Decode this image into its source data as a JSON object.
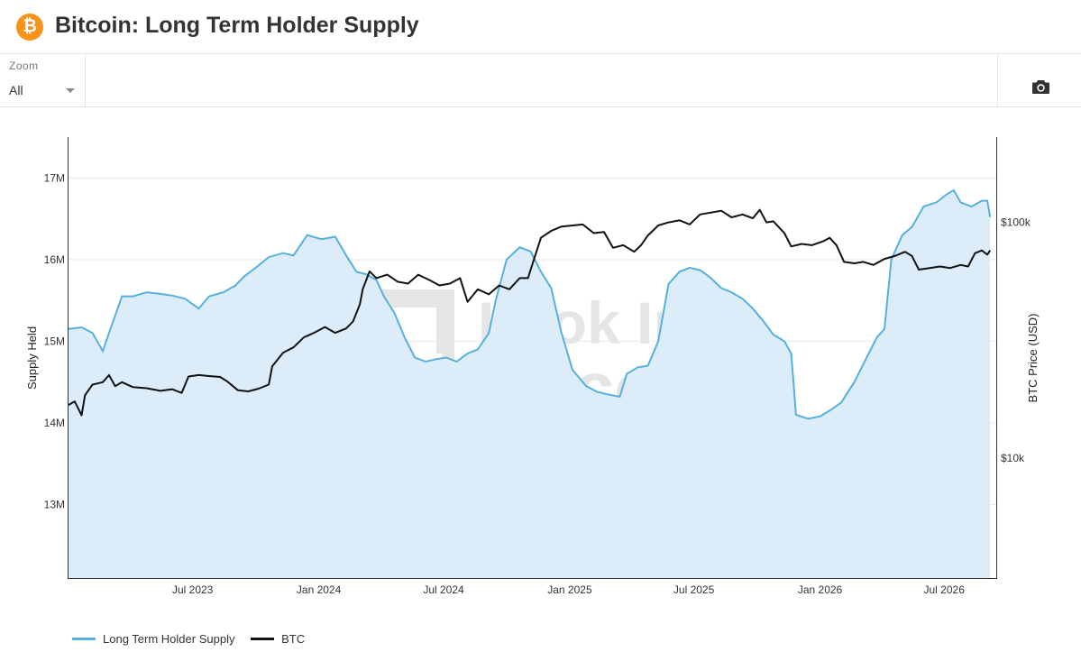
{
  "header": {
    "title": "Bitcoin: Long Term Holder Supply",
    "logo_glyph": "₿",
    "logo_color": "#f7931a"
  },
  "toolbar": {
    "zoom_label": "Zoom",
    "zoom_value": "All",
    "camera_icon": "camera-icon"
  },
  "watermark": {
    "line1": "Look Into",
    "line2": "Bitcoin"
  },
  "chart_data": {
    "type": "line",
    "title": "Bitcoin: Long Term Holder Supply",
    "ylabel": "Supply Held",
    "y2label": "BTC Price (USD)",
    "y_ticks": [
      "13M",
      "14M",
      "15M",
      "16M",
      "17M"
    ],
    "y2_ticks": [
      "$10k",
      "$100k"
    ],
    "x_ticks": [
      "Jul 2023",
      "Jan 2024",
      "Jul 2024",
      "Jan 2025",
      "Jul 2025",
      "Jan 2026",
      "Jul 2026"
    ],
    "x_tick_dates": [
      "2023-07-01",
      "2024-01-01",
      "2024-07-01",
      "2025-01-01",
      "2025-07-01",
      "2026-01-01",
      "2026-07-01"
    ],
    "x_range": [
      "2023-01-01",
      "2026-09-15"
    ],
    "y_range": [
      12100000,
      17500000
    ],
    "y2_log_range": [
      3100,
      230000
    ],
    "legend_position": "bottom-left",
    "series": [
      {
        "name": "Long Term Holder Supply",
        "color": "#56b0dd",
        "fill": "#dcedf9",
        "axis": "left",
        "points": [
          [
            "2023-01-01",
            15150000
          ],
          [
            "2023-01-20",
            15170000
          ],
          [
            "2023-02-05",
            15100000
          ],
          [
            "2023-02-20",
            14880000
          ],
          [
            "2023-03-01",
            15100000
          ],
          [
            "2023-03-20",
            15550000
          ],
          [
            "2023-04-05",
            15550000
          ],
          [
            "2023-04-25",
            15600000
          ],
          [
            "2023-05-15",
            15580000
          ],
          [
            "2023-06-01",
            15560000
          ],
          [
            "2023-06-20",
            15520000
          ],
          [
            "2023-07-10",
            15400000
          ],
          [
            "2023-07-25",
            15550000
          ],
          [
            "2023-08-15",
            15600000
          ],
          [
            "2023-09-01",
            15680000
          ],
          [
            "2023-09-15",
            15800000
          ],
          [
            "2023-10-01",
            15900000
          ],
          [
            "2023-10-20",
            16030000
          ],
          [
            "2023-11-10",
            16080000
          ],
          [
            "2023-11-25",
            16050000
          ],
          [
            "2023-12-15",
            16300000
          ],
          [
            "2024-01-05",
            16250000
          ],
          [
            "2024-01-25",
            16280000
          ],
          [
            "2024-02-10",
            16050000
          ],
          [
            "2024-02-25",
            15850000
          ],
          [
            "2024-03-10",
            15820000
          ],
          [
            "2024-03-25",
            15750000
          ],
          [
            "2024-04-05",
            15550000
          ],
          [
            "2024-04-20",
            15350000
          ],
          [
            "2024-05-05",
            15050000
          ],
          [
            "2024-05-20",
            14800000
          ],
          [
            "2024-06-05",
            14750000
          ],
          [
            "2024-06-20",
            14780000
          ],
          [
            "2024-07-05",
            14800000
          ],
          [
            "2024-07-20",
            14750000
          ],
          [
            "2024-08-05",
            14850000
          ],
          [
            "2024-08-20",
            14900000
          ],
          [
            "2024-09-05",
            15100000
          ],
          [
            "2024-09-15",
            15500000
          ],
          [
            "2024-10-01",
            16000000
          ],
          [
            "2024-10-20",
            16150000
          ],
          [
            "2024-11-05",
            16100000
          ],
          [
            "2024-11-20",
            15850000
          ],
          [
            "2024-12-05",
            15650000
          ],
          [
            "2024-12-20",
            15100000
          ],
          [
            "2025-01-05",
            14650000
          ],
          [
            "2025-01-25",
            14450000
          ],
          [
            "2025-02-10",
            14380000
          ],
          [
            "2025-02-25",
            14350000
          ],
          [
            "2025-03-15",
            14320000
          ],
          [
            "2025-03-25",
            14600000
          ],
          [
            "2025-04-10",
            14680000
          ],
          [
            "2025-04-25",
            14700000
          ],
          [
            "2025-05-10",
            15000000
          ],
          [
            "2025-05-25",
            15700000
          ],
          [
            "2025-06-10",
            15850000
          ],
          [
            "2025-06-25",
            15900000
          ],
          [
            "2025-07-10",
            15870000
          ],
          [
            "2025-07-25",
            15780000
          ],
          [
            "2025-08-10",
            15650000
          ],
          [
            "2025-08-25",
            15600000
          ],
          [
            "2025-09-10",
            15520000
          ],
          [
            "2025-09-25",
            15400000
          ],
          [
            "2025-10-10",
            15250000
          ],
          [
            "2025-10-25",
            15080000
          ],
          [
            "2025-11-10",
            15000000
          ],
          [
            "2025-11-20",
            14850000
          ],
          [
            "2025-11-27",
            14100000
          ],
          [
            "2025-12-15",
            14050000
          ],
          [
            "2026-01-01",
            14080000
          ],
          [
            "2026-01-15",
            14150000
          ],
          [
            "2026-02-01",
            14250000
          ],
          [
            "2026-02-20",
            14500000
          ],
          [
            "2026-03-10",
            14800000
          ],
          [
            "2026-03-25",
            15050000
          ],
          [
            "2026-04-05",
            15150000
          ],
          [
            "2026-04-15",
            16000000
          ],
          [
            "2026-05-01",
            16300000
          ],
          [
            "2026-05-15",
            16400000
          ],
          [
            "2026-06-01",
            16650000
          ],
          [
            "2026-06-20",
            16700000
          ],
          [
            "2026-07-05",
            16800000
          ],
          [
            "2026-07-15",
            16850000
          ],
          [
            "2026-07-25",
            16700000
          ],
          [
            "2026-08-10",
            16650000
          ],
          [
            "2026-08-25",
            16720000
          ],
          [
            "2026-09-02",
            16720000
          ],
          [
            "2026-09-06",
            16520000
          ]
        ]
      },
      {
        "name": "BTC",
        "color": "#111111",
        "axis": "right",
        "points": [
          [
            "2023-01-01",
            16800
          ],
          [
            "2023-01-10",
            17400
          ],
          [
            "2023-01-20",
            15200
          ],
          [
            "2023-01-25",
            18500
          ],
          [
            "2023-02-05",
            20500
          ],
          [
            "2023-02-20",
            21000
          ],
          [
            "2023-03-01",
            22500
          ],
          [
            "2023-03-10",
            20200
          ],
          [
            "2023-03-20",
            21000
          ],
          [
            "2023-04-05",
            20000
          ],
          [
            "2023-04-25",
            19800
          ],
          [
            "2023-05-15",
            19300
          ],
          [
            "2023-06-01",
            19600
          ],
          [
            "2023-06-15",
            18900
          ],
          [
            "2023-06-25",
            22200
          ],
          [
            "2023-07-10",
            22500
          ],
          [
            "2023-07-25",
            22300
          ],
          [
            "2023-08-10",
            22100
          ],
          [
            "2023-08-20",
            21200
          ],
          [
            "2023-09-05",
            19400
          ],
          [
            "2023-09-20",
            19200
          ],
          [
            "2023-10-05",
            19700
          ],
          [
            "2023-10-20",
            20500
          ],
          [
            "2023-10-25",
            24500
          ],
          [
            "2023-11-10",
            28000
          ],
          [
            "2023-11-25",
            29500
          ],
          [
            "2023-12-10",
            32500
          ],
          [
            "2023-12-25",
            34000
          ],
          [
            "2024-01-10",
            36000
          ],
          [
            "2024-01-25",
            34000
          ],
          [
            "2024-02-10",
            35500
          ],
          [
            "2024-02-20",
            38000
          ],
          [
            "2024-03-01",
            45000
          ],
          [
            "2024-03-05",
            52000
          ],
          [
            "2024-03-15",
            62000
          ],
          [
            "2024-03-25",
            58000
          ],
          [
            "2024-04-10",
            60000
          ],
          [
            "2024-04-25",
            56000
          ],
          [
            "2024-05-10",
            55000
          ],
          [
            "2024-05-25",
            60000
          ],
          [
            "2024-06-10",
            57000
          ],
          [
            "2024-06-25",
            54000
          ],
          [
            "2024-07-10",
            55000
          ],
          [
            "2024-07-25",
            58000
          ],
          [
            "2024-08-05",
            46000
          ],
          [
            "2024-08-20",
            52000
          ],
          [
            "2024-09-05",
            49500
          ],
          [
            "2024-09-20",
            54000
          ],
          [
            "2024-10-05",
            52000
          ],
          [
            "2024-10-20",
            58000
          ],
          [
            "2024-11-01",
            58000
          ],
          [
            "2024-11-10",
            70000
          ],
          [
            "2024-11-20",
            86000
          ],
          [
            "2024-12-05",
            92000
          ],
          [
            "2024-12-20",
            96000
          ],
          [
            "2025-01-05",
            97000
          ],
          [
            "2025-01-20",
            98000
          ],
          [
            "2025-02-05",
            90000
          ],
          [
            "2025-02-20",
            91000
          ],
          [
            "2025-03-05",
            78000
          ],
          [
            "2025-03-20",
            80000
          ],
          [
            "2025-04-05",
            75000
          ],
          [
            "2025-04-15",
            80000
          ],
          [
            "2025-04-25",
            88000
          ],
          [
            "2025-05-10",
            97000
          ],
          [
            "2025-05-25",
            100000
          ],
          [
            "2025-06-10",
            102000
          ],
          [
            "2025-06-25",
            98000
          ],
          [
            "2025-07-10",
            108000
          ],
          [
            "2025-07-25",
            110000
          ],
          [
            "2025-08-10",
            112000
          ],
          [
            "2025-08-25",
            105000
          ],
          [
            "2025-09-10",
            108000
          ],
          [
            "2025-09-25",
            104000
          ],
          [
            "2025-10-05",
            113000
          ],
          [
            "2025-10-15",
            100000
          ],
          [
            "2025-10-25",
            101000
          ],
          [
            "2025-11-10",
            90000
          ],
          [
            "2025-11-20",
            79000
          ],
          [
            "2025-12-05",
            81000
          ],
          [
            "2025-12-20",
            80000
          ],
          [
            "2026-01-05",
            83000
          ],
          [
            "2026-01-15",
            86000
          ],
          [
            "2026-01-25",
            80000
          ],
          [
            "2026-02-05",
            68000
          ],
          [
            "2026-02-20",
            67000
          ],
          [
            "2026-03-05",
            68000
          ],
          [
            "2026-03-20",
            66000
          ],
          [
            "2026-04-05",
            70000
          ],
          [
            "2026-04-20",
            72000
          ],
          [
            "2026-05-05",
            75000
          ],
          [
            "2026-05-15",
            72000
          ],
          [
            "2026-05-25",
            63000
          ],
          [
            "2026-06-10",
            64000
          ],
          [
            "2026-06-25",
            65000
          ],
          [
            "2026-07-10",
            64000
          ],
          [
            "2026-07-25",
            66000
          ],
          [
            "2026-08-05",
            65000
          ],
          [
            "2026-08-15",
            74000
          ],
          [
            "2026-08-25",
            76000
          ],
          [
            "2026-09-02",
            73000
          ],
          [
            "2026-09-06",
            76000
          ]
        ]
      }
    ]
  }
}
